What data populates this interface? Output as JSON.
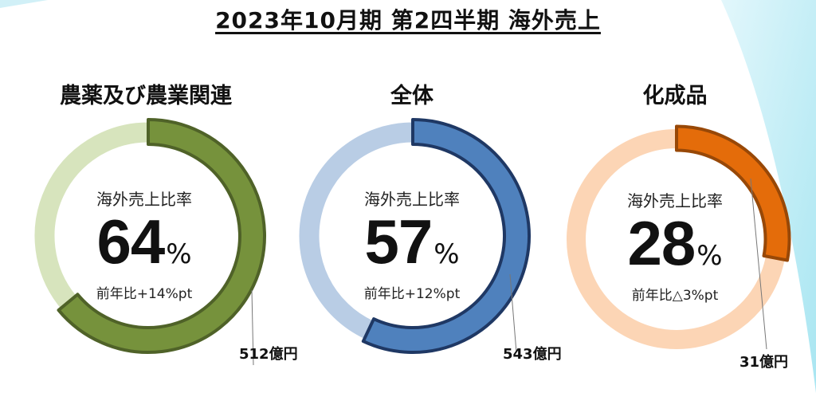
{
  "title": "2023年10月期 第2四半期 海外売上",
  "ratio_label": "海外売上比率",
  "chart_data": [
    {
      "type": "pie",
      "title": "農薬及び農業関連",
      "value_percent": 64,
      "unit": "%",
      "yoy_text": "前年比+14%pt",
      "amount_label": "512億円",
      "colors": {
        "filled": "#76923c",
        "filled_edge": "#4f6228",
        "rest": "#d7e4bd"
      }
    },
    {
      "type": "pie",
      "title": "全体",
      "value_percent": 57,
      "unit": "%",
      "yoy_text": "前年比+12%pt",
      "amount_label": "543億円",
      "colors": {
        "filled": "#4f81bd",
        "filled_edge": "#1f3864",
        "rest": "#b9cde5"
      }
    },
    {
      "type": "pie",
      "title": "化成品",
      "value_percent": 28,
      "unit": "%",
      "yoy_text": "前年比△3%pt",
      "amount_label": "31億円",
      "colors": {
        "filled": "#e46c0a",
        "filled_edge": "#984807",
        "rest": "#fcd5b5"
      }
    }
  ]
}
